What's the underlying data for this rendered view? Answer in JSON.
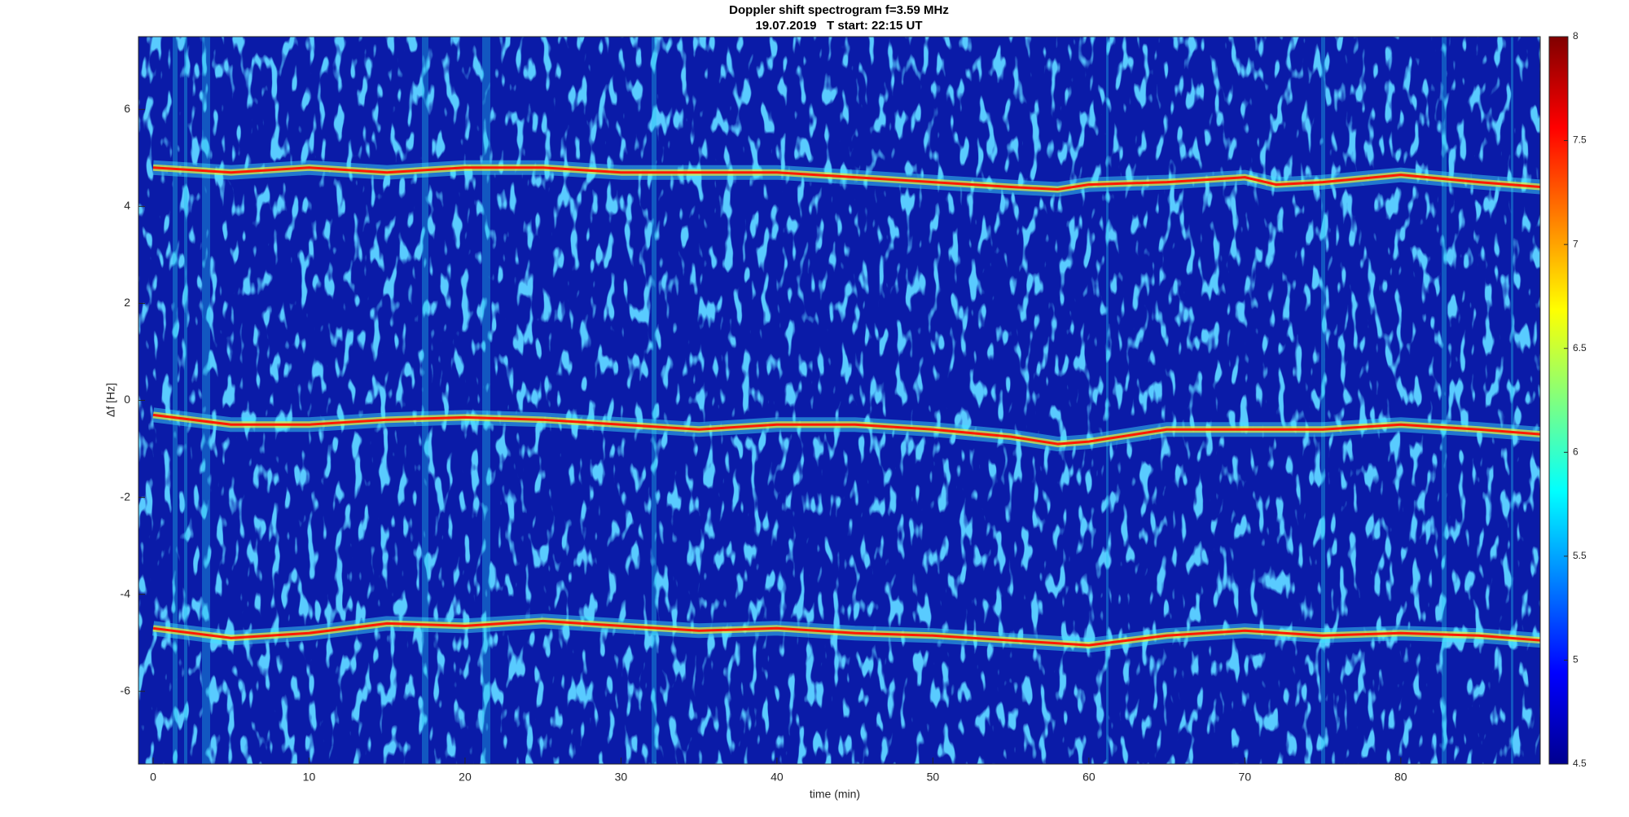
{
  "chart_data": {
    "type": "spectrogram",
    "title": "Doppler shift spectrogram f=3.59 MHz",
    "subtitle": "19.07.2019   T start: 22:15 UT",
    "xlabel": "time (min)",
    "ylabel": "Δf [Hz]",
    "xlim": [
      -0.94,
      88.94
    ],
    "xticks": [
      0,
      10,
      20,
      30,
      40,
      50,
      60,
      70,
      80
    ],
    "ylim": [
      -7.5,
      7.5
    ],
    "yticks": [
      -6,
      -4,
      -2,
      0,
      2,
      4,
      6
    ],
    "colormap": "jet",
    "clim": [
      4.5,
      8
    ],
    "cticks": [
      4.5,
      5,
      5.5,
      6,
      6.5,
      7,
      7.5,
      8
    ],
    "series": [
      {
        "color": "#ff1a00",
        "x": [
          0,
          5,
          10,
          15,
          20,
          25,
          30,
          35,
          40,
          45,
          50,
          55,
          58,
          60,
          65,
          70,
          72,
          75,
          80,
          85,
          89
        ],
        "values": [
          4.8,
          4.7,
          4.8,
          4.7,
          4.8,
          4.8,
          4.7,
          4.7,
          4.7,
          4.6,
          4.5,
          4.4,
          4.35,
          4.45,
          4.5,
          4.6,
          4.45,
          4.5,
          4.65,
          4.5,
          4.4
        ]
      },
      {
        "color": "#ff1a00",
        "x": [
          0,
          5,
          10,
          15,
          20,
          25,
          30,
          35,
          40,
          45,
          50,
          55,
          58,
          60,
          65,
          70,
          75,
          80,
          85,
          89
        ],
        "values": [
          -0.3,
          -0.5,
          -0.5,
          -0.4,
          -0.35,
          -0.4,
          -0.5,
          -0.6,
          -0.5,
          -0.5,
          -0.6,
          -0.75,
          -0.9,
          -0.85,
          -0.6,
          -0.6,
          -0.6,
          -0.5,
          -0.6,
          -0.7
        ]
      },
      {
        "color": "#ff1a00",
        "x": [
          0,
          5,
          10,
          15,
          20,
          25,
          30,
          35,
          40,
          45,
          50,
          55,
          60,
          65,
          70,
          75,
          80,
          85,
          89
        ],
        "values": [
          -4.7,
          -4.9,
          -4.8,
          -4.6,
          -4.65,
          -4.55,
          -4.65,
          -4.75,
          -4.7,
          -4.8,
          -4.85,
          -4.95,
          -5.05,
          -4.85,
          -4.75,
          -4.85,
          -4.8,
          -4.85,
          -4.95
        ]
      }
    ]
  }
}
